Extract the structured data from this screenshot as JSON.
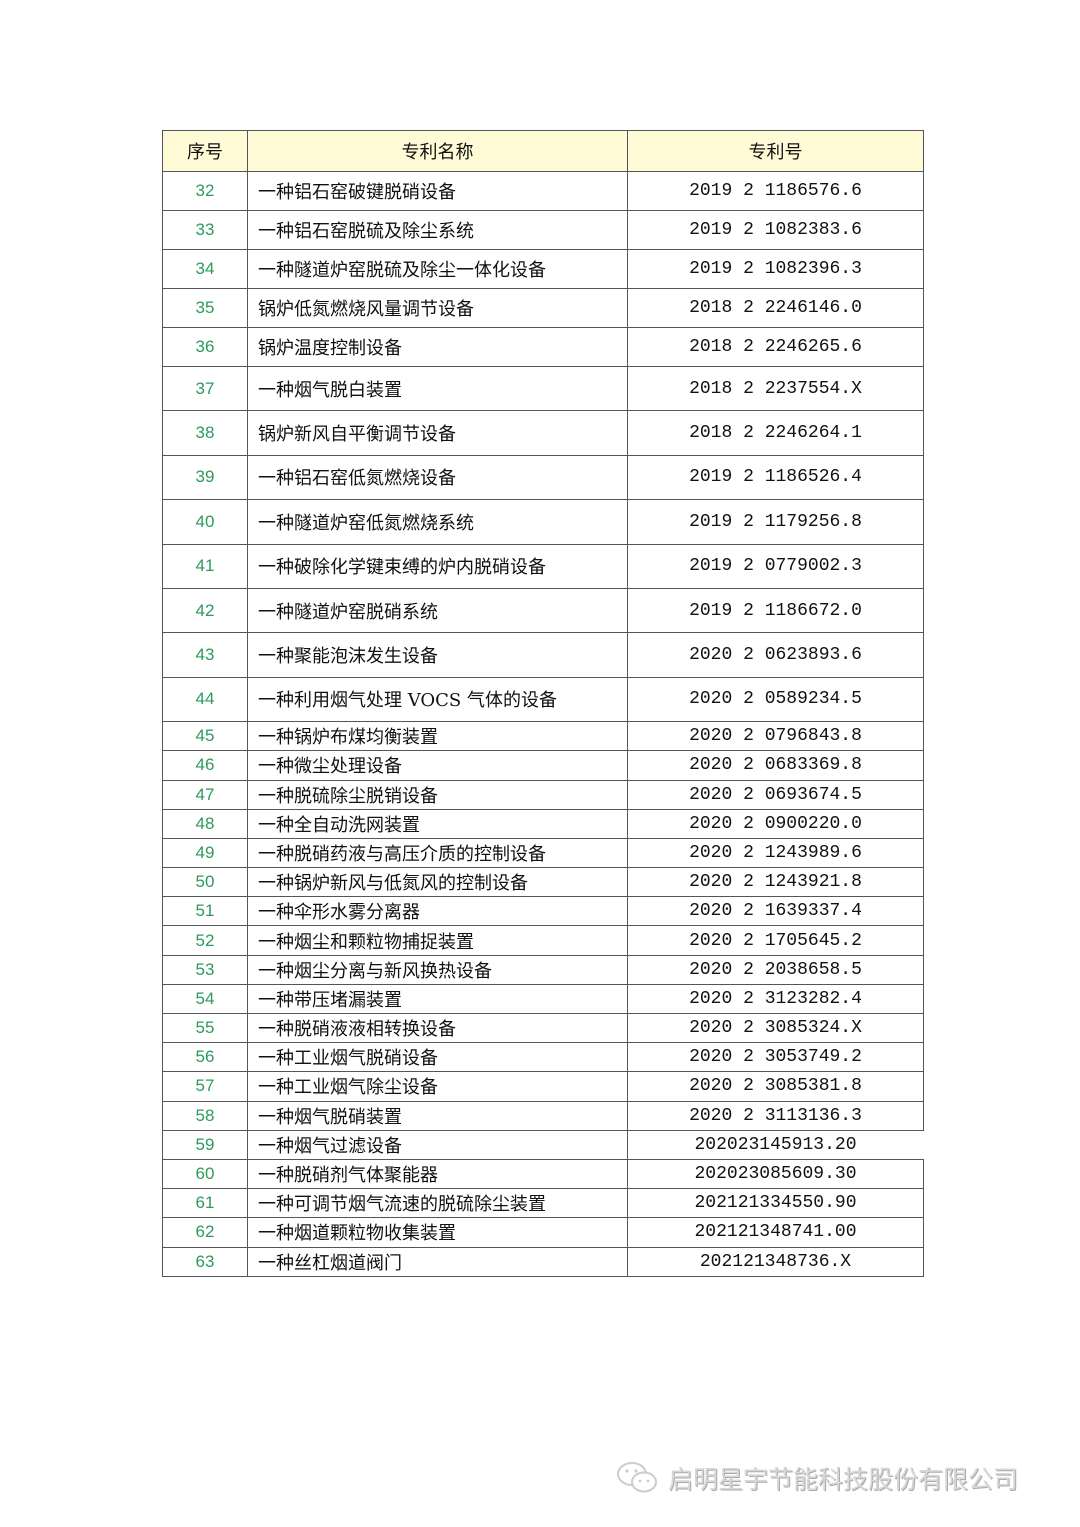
{
  "table": {
    "headers": {
      "no": "序号",
      "name": "专利名称",
      "number": "专利号"
    },
    "header_bg": "#fefbd6",
    "index_color": "#2e9a5c",
    "rows": [
      {
        "no": "32",
        "name": "一种铝石窑破键脱硝设备",
        "number": "2019 2 1186576.6"
      },
      {
        "no": "33",
        "name": "一种铝石窑脱硫及除尘系统",
        "number": "2019 2 1082383.6"
      },
      {
        "no": "34",
        "name": "一种隧道炉窑脱硫及除尘一体化设备",
        "number": "2019 2 1082396.3"
      },
      {
        "no": "35",
        "name": "锅炉低氮燃烧风量调节设备",
        "number": "2018 2 2246146.0"
      },
      {
        "no": "36",
        "name": "锅炉温度控制设备",
        "number": "2018 2 2246265.6"
      },
      {
        "no": "37",
        "name": "一种烟气脱白装置",
        "number": "2018 2 2237554.X"
      },
      {
        "no": "38",
        "name": "锅炉新风自平衡调节设备",
        "number": "2018 2 2246264.1"
      },
      {
        "no": "39",
        "name": "一种铝石窑低氮燃烧设备",
        "number": "2019 2 1186526.4"
      },
      {
        "no": "40",
        "name": "一种隧道炉窑低氮燃烧系统",
        "number": "2019 2 1179256.8"
      },
      {
        "no": "41",
        "name": "一种破除化学键束缚的炉内脱硝设备",
        "number": "2019 2 0779002.3"
      },
      {
        "no": "42",
        "name": "一种隧道炉窑脱硝系统",
        "number": "2019 2 1186672.0"
      },
      {
        "no": "43",
        "name": "一种聚能泡沫发生设备",
        "number": "2020 2 0623893.6"
      },
      {
        "no": "44",
        "name": "一种利用烟气处理 VOCS 气体的设备",
        "number": "2020 2 0589234.5"
      },
      {
        "no": "45",
        "name": "一种锅炉布煤均衡装置",
        "number": "2020 2 0796843.8"
      },
      {
        "no": "46",
        "name": "一种微尘处理设备",
        "number": "2020 2 0683369.8"
      },
      {
        "no": "47",
        "name": "一种脱硫除尘脱销设备",
        "number": "2020 2 0693674.5"
      },
      {
        "no": "48",
        "name": "一种全自动洗网装置",
        "number": "2020 2 0900220.0"
      },
      {
        "no": "49",
        "name": "一种脱硝药液与高压介质的控制设备",
        "number": "2020 2 1243989.6"
      },
      {
        "no": "50",
        "name": "一种锅炉新风与低氮风的控制设备",
        "number": "2020 2 1243921.8"
      },
      {
        "no": "51",
        "name": "一种伞形水雾分离器",
        "number": "2020 2 1639337.4"
      },
      {
        "no": "52",
        "name": "一种烟尘和颗粒物捕捉装置",
        "number": "2020 2 1705645.2"
      },
      {
        "no": "53",
        "name": "一种烟尘分离与新风换热设备",
        "number": "2020 2 2038658.5"
      },
      {
        "no": "54",
        "name": "一种带压堵漏装置",
        "number": "2020 2 3123282.4"
      },
      {
        "no": "55",
        "name": "一种脱硝液液相转换设备",
        "number": "2020 2 3085324.X"
      },
      {
        "no": "56",
        "name": "一种工业烟气脱硝设备",
        "number": "2020 2 3053749.2"
      },
      {
        "no": "57",
        "name": "一种工业烟气除尘设备",
        "number": "2020 2 3085381.8"
      },
      {
        "no": "58",
        "name": "一种烟气脱硝装置",
        "number": "2020 2 3113136.3"
      },
      {
        "no": "59",
        "name": "一种烟气过滤设备",
        "number": "202023145913.20"
      },
      {
        "no": "60",
        "name": "一种脱硝剂气体聚能器",
        "number": "202023085609.30"
      },
      {
        "no": "61",
        "name": "一种可调节烟气流速的脱硫除尘装置",
        "number": "202121334550.90"
      },
      {
        "no": "62",
        "name": "一种烟道颗粒物收集装置",
        "number": "202121348741.00"
      },
      {
        "no": "63",
        "name": "一种丝杠烟道阀门",
        "number": "202121348736.X"
      }
    ]
  },
  "watermark": {
    "text": "启明星宇节能科技股份有限公司",
    "icon": "wechat-icon"
  }
}
